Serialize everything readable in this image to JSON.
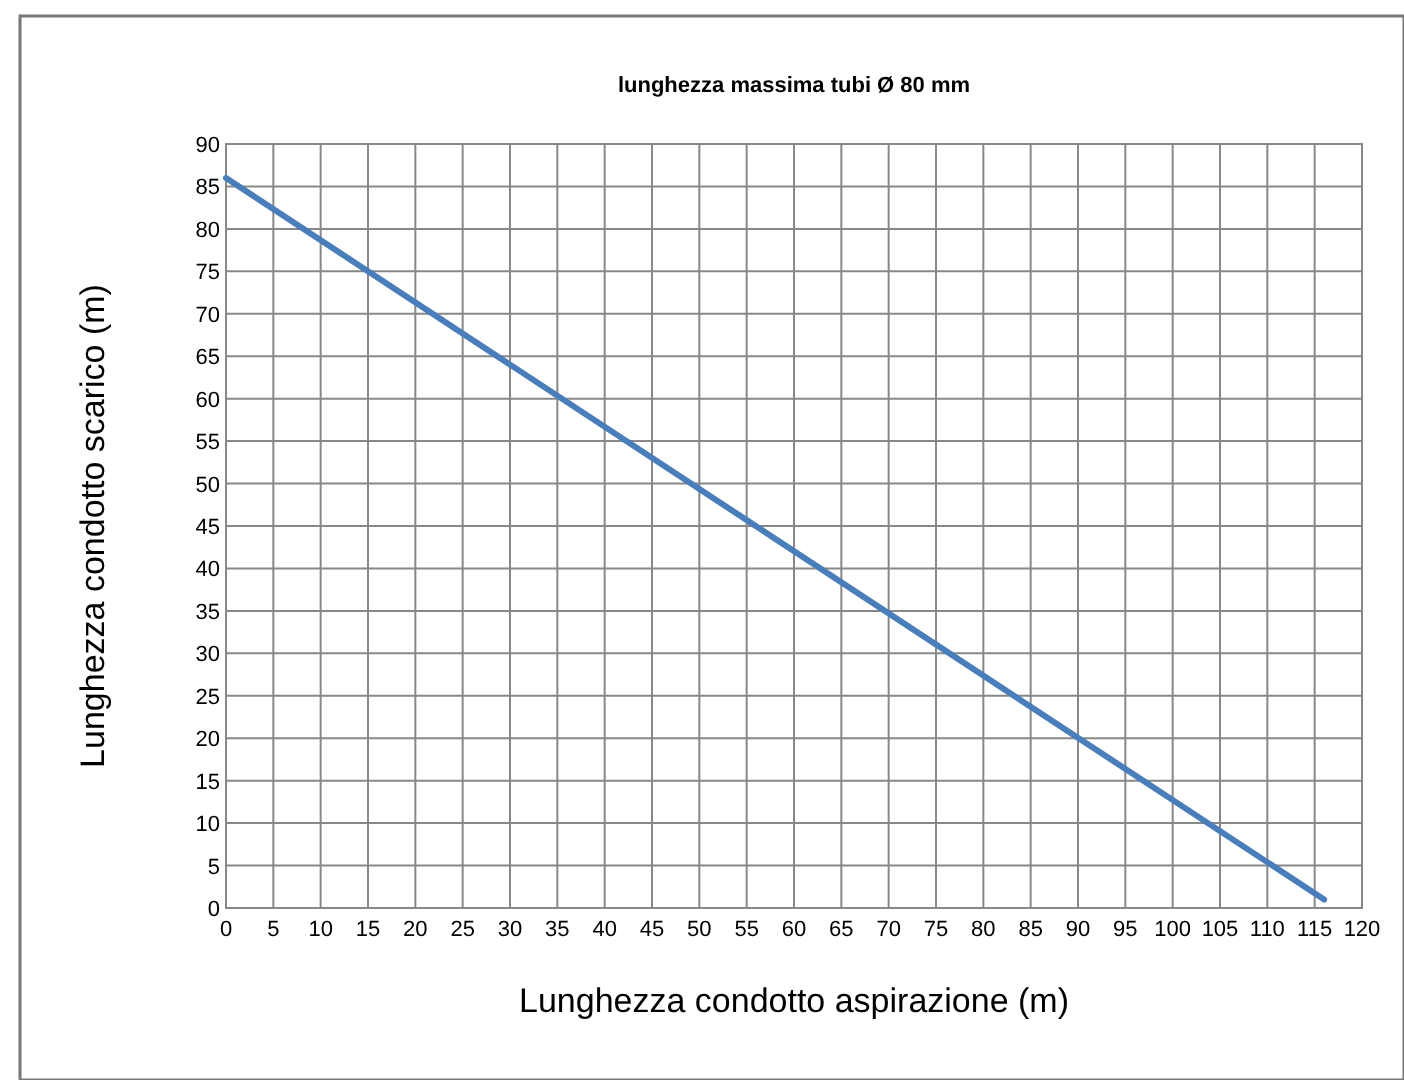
{
  "chart_data": {
    "type": "line",
    "subtitle": "lunghezza massima tubi Ø 80 mm",
    "xlabel": "Lunghezza condotto aspirazione (m)",
    "ylabel": "Lunghezza condotto scarico (m)",
    "x": [
      0,
      116
    ],
    "series": [
      {
        "color": "#4a7ebb",
        "values": [
          86,
          1
        ]
      }
    ],
    "xlim": [
      0,
      120
    ],
    "xticks": [
      0,
      5,
      10,
      15,
      20,
      25,
      30,
      35,
      40,
      45,
      50,
      55,
      60,
      65,
      70,
      75,
      80,
      85,
      90,
      95,
      100,
      105,
      110,
      115,
      120
    ],
    "ylim": [
      0,
      90
    ],
    "yticks": [
      0,
      5,
      10,
      15,
      20,
      25,
      30,
      35,
      40,
      45,
      50,
      55,
      60,
      65,
      70,
      75,
      80,
      85,
      90
    ],
    "grid": true,
    "marker": "none",
    "line_style": "solid"
  }
}
